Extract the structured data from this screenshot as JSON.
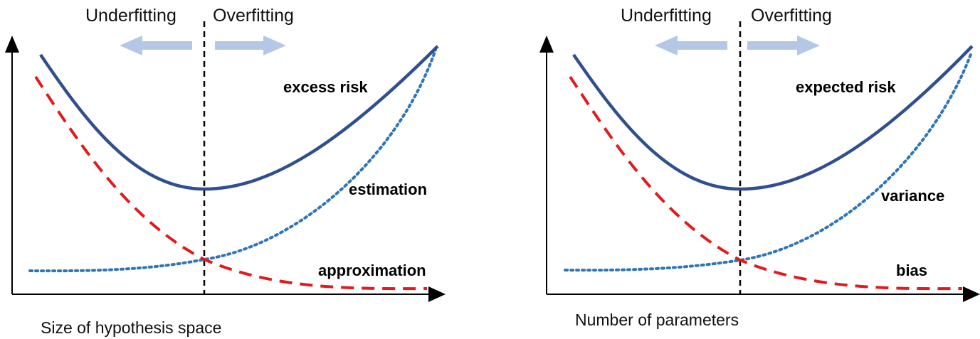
{
  "colors": {
    "risk": "#2f4f8f",
    "variance_estimation": "#2e75b6",
    "bias_approximation": "#e31a1c",
    "arrow": "#b4c7e7",
    "axis": "#000000"
  },
  "panels": [
    {
      "underfitting": "Underfitting",
      "overfitting": "Overfitting",
      "risk_label": "excess risk",
      "increasing_label": "estimation",
      "decreasing_label": "approximation",
      "x_axis_label": "Size of hypothesis space"
    },
    {
      "underfitting": "Underfitting",
      "overfitting": "Overfitting",
      "risk_label": "expected risk",
      "increasing_label": "variance",
      "decreasing_label": "bias",
      "x_axis_label": "Number of parameters"
    }
  ]
}
